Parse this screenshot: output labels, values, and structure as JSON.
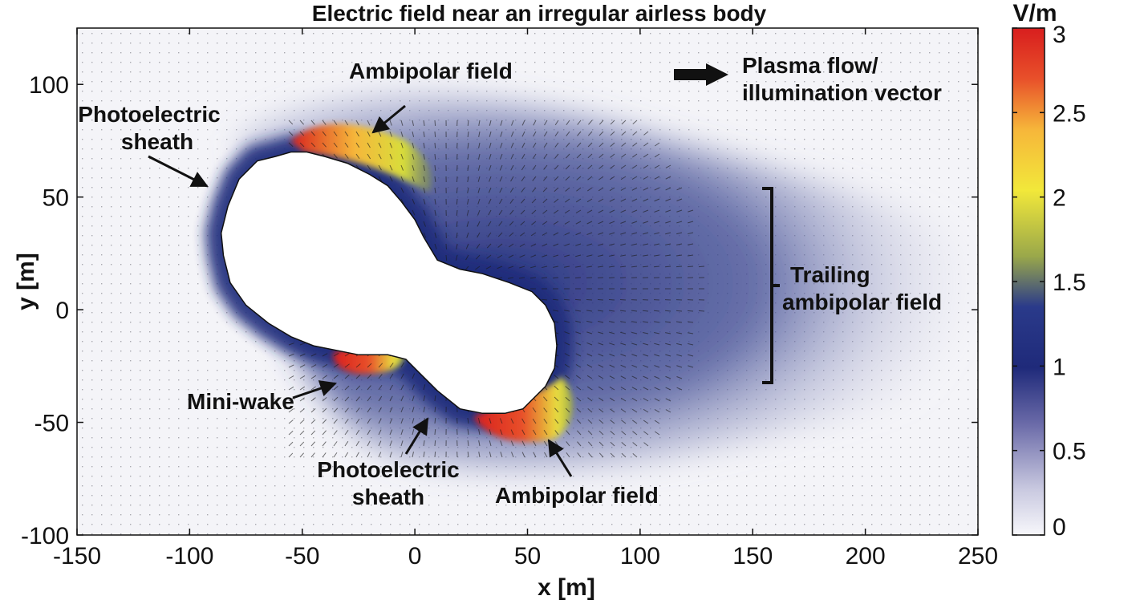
{
  "chart_data": {
    "type": "heatmap",
    "title": "Electric field near an irregular airless body",
    "xlabel": "x [m]",
    "ylabel": "y [m]",
    "xlim": [
      -150,
      250
    ],
    "ylim": [
      -100,
      125
    ],
    "xticks": [
      -150,
      -100,
      -50,
      0,
      50,
      100,
      150,
      200,
      250
    ],
    "yticks": [
      -100,
      -50,
      0,
      50,
      100
    ],
    "xtick_labels": [
      "-150",
      "-100",
      "-50",
      "0",
      "50",
      "100",
      "150",
      "200",
      "250"
    ],
    "ytick_labels": [
      "-100",
      "-50",
      "0",
      "50",
      "100"
    ],
    "colorbar": {
      "label": "V/m",
      "range": [
        0,
        3
      ],
      "ticks": [
        0,
        0.5,
        1,
        1.5,
        2,
        2.5,
        3
      ],
      "tick_labels": [
        "0",
        "0.5",
        "1",
        "1.5",
        "2",
        "2.5",
        "3"
      ],
      "colormap": [
        "#f7f7fb",
        "#c9c9e0",
        "#6a6aa8",
        "#1f2a7a",
        "#2a3a8a",
        "#9aa84a",
        "#f2e83a",
        "#f6b63a",
        "#e8502a",
        "#d81e1e"
      ]
    },
    "body_outline": [
      [
        -83,
        46
      ],
      [
        -78,
        58
      ],
      [
        -70,
        66
      ],
      [
        -62,
        68
      ],
      [
        -55,
        70
      ],
      [
        -48,
        70
      ],
      [
        -40,
        68
      ],
      [
        -30,
        65
      ],
      [
        -20,
        60
      ],
      [
        -12,
        55
      ],
      [
        -6,
        48
      ],
      [
        0,
        40
      ],
      [
        4,
        32
      ],
      [
        10,
        22
      ],
      [
        20,
        18
      ],
      [
        30,
        16
      ],
      [
        42,
        12
      ],
      [
        52,
        8
      ],
      [
        58,
        2
      ],
      [
        62,
        -6
      ],
      [
        63,
        -16
      ],
      [
        62,
        -26
      ],
      [
        58,
        -34
      ],
      [
        48,
        -44
      ],
      [
        40,
        -46
      ],
      [
        30,
        -46
      ],
      [
        20,
        -44
      ],
      [
        10,
        -36
      ],
      [
        2,
        -28
      ],
      [
        -4,
        -22
      ],
      [
        -12,
        -20
      ],
      [
        -25,
        -20
      ],
      [
        -35,
        -18
      ],
      [
        -45,
        -16
      ],
      [
        -55,
        -12
      ],
      [
        -65,
        -6
      ],
      [
        -75,
        2
      ],
      [
        -82,
        12
      ],
      [
        -85,
        24
      ],
      [
        -86,
        34
      ],
      [
        -83,
        46
      ]
    ],
    "annotations": [
      {
        "text": "Ambipolar field",
        "points_to": [
          -18,
          80
        ]
      },
      {
        "text": "Photoelectric sheath",
        "points_to": [
          -90,
          50
        ]
      },
      {
        "text": "Plasma flow/ illumination vector",
        "points_to": [
          140,
          105
        ]
      },
      {
        "text": "Trailing ambipolar field",
        "points_to": [
          160,
          10
        ]
      },
      {
        "text": "Mini-wake",
        "points_to": [
          -35,
          -30
        ]
      },
      {
        "text": "Photoelectric sheath",
        "points_to": [
          8,
          -45
        ]
      },
      {
        "text": "Ambipolar field",
        "points_to": [
          48,
          -55
        ]
      }
    ]
  },
  "annotations_text": {
    "ambipolar_top": "Ambipolar field",
    "photo_left_1": "Photoelectric",
    "photo_left_2": "sheath",
    "plasma_1": "Plasma flow/",
    "plasma_2": "illumination vector",
    "trailing_1": "Trailing",
    "trailing_2": "ambipolar field",
    "miniwake": "Mini-wake",
    "photo_bottom_1": "Photoelectric",
    "photo_bottom_2": "sheath",
    "ambipolar_bottom": "Ambipolar field"
  }
}
